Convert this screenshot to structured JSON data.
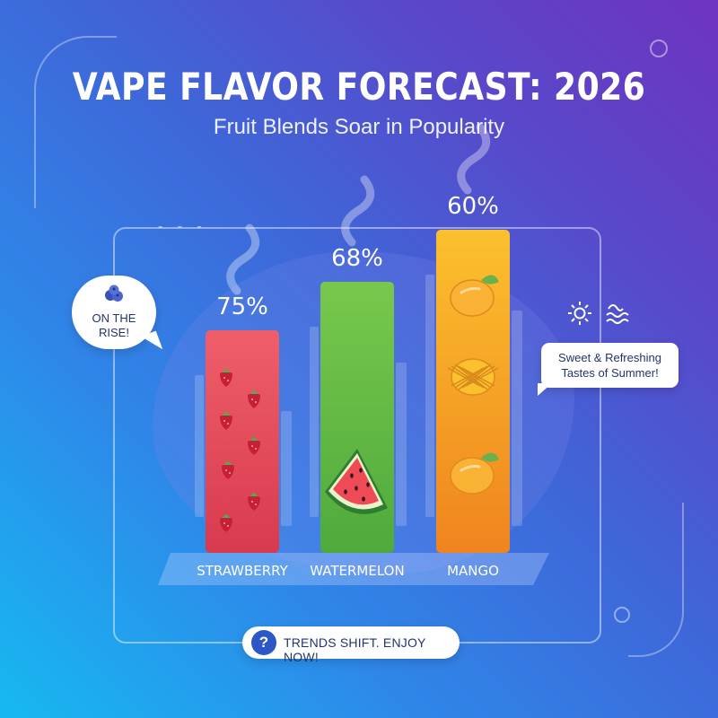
{
  "title": "VAPE FLAVOR FORECAST: 2026",
  "subtitle": "Fruit Blends Soar in Popularity",
  "callout_left": {
    "line1": "ON THE",
    "line2": "RISE!",
    "icon": "blueberry-icon"
  },
  "callout_right": {
    "line1": "Sweet & Refreshing",
    "line2": "Tastes of Summer!",
    "icons": [
      "sun-icon",
      "waves-icon"
    ]
  },
  "footer": {
    "icon": "?",
    "text": "TRENDS SHIFT. ENJOY NOW!"
  },
  "colors": {
    "strawberry": "#e8505d",
    "watermelon": "#6bbd45",
    "mango": "#f5a22a",
    "text_dark": "#22356b",
    "accent": "#2d56c6"
  },
  "chart_data": {
    "type": "bar",
    "categories": [
      "STRAWBERRY",
      "WATERMELON",
      "MANGO"
    ],
    "values": [
      75,
      68,
      60
    ],
    "value_labels": [
      "75%",
      "68%",
      "60%"
    ],
    "bar_decorations": [
      "strawberry-icon",
      "watermelon-icon",
      "mango-icon"
    ]
  }
}
